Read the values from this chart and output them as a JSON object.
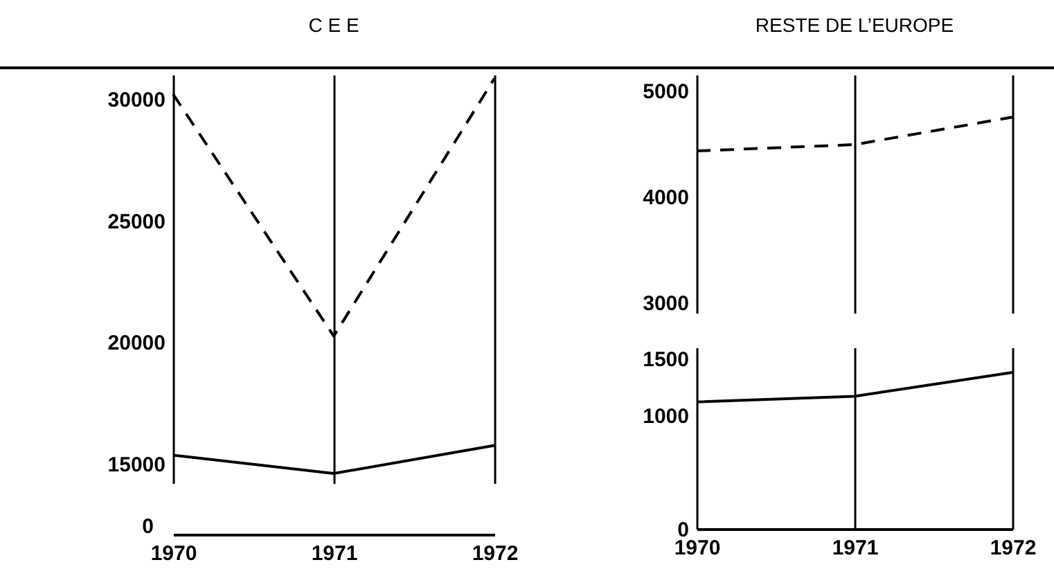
{
  "chart_data": [
    {
      "type": "line",
      "title": "C E E",
      "categories": [
        "1970",
        "1971",
        "1972"
      ],
      "ylim": [
        14200,
        31000
      ],
      "yticks": [
        15000,
        20000,
        25000,
        30000
      ],
      "grid": "x",
      "tick_labels": "y",
      "series": [
        {
          "color": "#000000",
          "line_style": "dashed",
          "values": [
            30200,
            20250,
            30850
          ]
        },
        {
          "color": "#000000",
          "line_style": "solid",
          "values": [
            15350,
            14600,
            15750
          ]
        }
      ]
    },
    {
      "type": "other",
      "categories": [
        "1970",
        "1971",
        "1972"
      ],
      "annotations": [
        "0"
      ]
    },
    {
      "type": "line",
      "title": "RESTE DE L’EUROPE",
      "categories": [
        "1970",
        "1971",
        "1972"
      ],
      "ylim": [
        2900,
        5150
      ],
      "yticks": [
        3000,
        4000,
        5000
      ],
      "grid": "x",
      "tick_labels": "y",
      "series": [
        {
          "color": "#000000",
          "line_style": "dashed",
          "values": [
            4430,
            4490,
            4750
          ]
        }
      ]
    },
    {
      "type": "line",
      "categories": [
        "1970",
        "1971",
        "1972"
      ],
      "ylim": [
        0,
        1600
      ],
      "yticks": [
        0,
        1000,
        1500
      ],
      "grid": "x",
      "series": [
        {
          "color": "#000000",
          "line_style": "solid",
          "values": [
            1120,
            1170,
            1380
          ]
        }
      ]
    }
  ]
}
